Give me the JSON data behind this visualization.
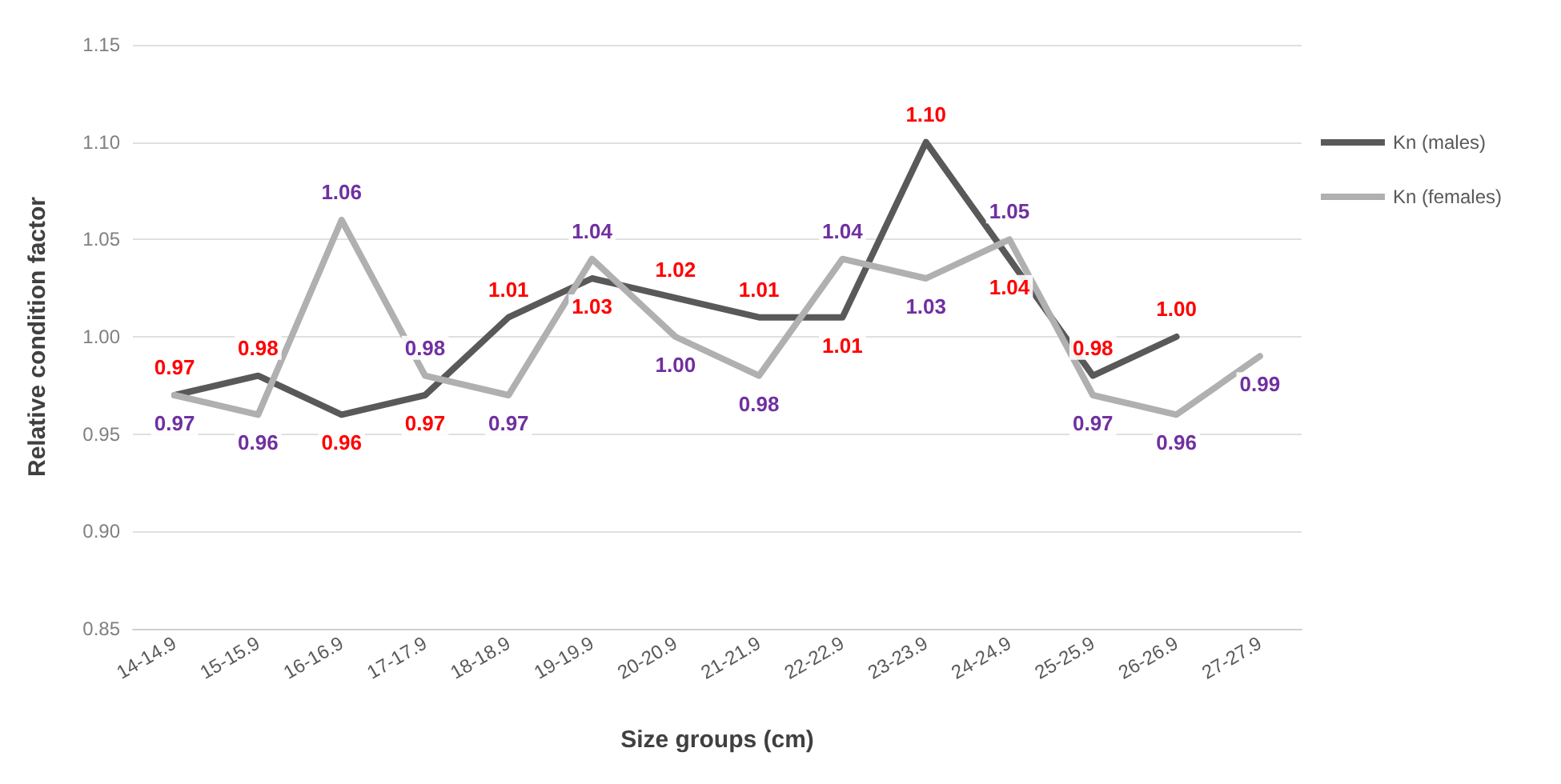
{
  "chart_data": {
    "type": "line",
    "xlabel": "Size groups (cm)",
    "ylabel": "Relative condition factor",
    "categories": [
      "14-14.9",
      "15-15.9",
      "16-16.9",
      "17-17.9",
      "18-18.9",
      "19-19.9",
      "20-20.9",
      "21-21.9",
      "22-22.9",
      "23-23.9",
      "24-24.9",
      "25-25.9",
      "26-26.9",
      "27-27.9"
    ],
    "series": [
      {
        "name": "Kn (males)",
        "color": "#595959",
        "values": [
          0.97,
          0.98,
          0.96,
          0.97,
          1.01,
          1.03,
          1.02,
          1.01,
          1.01,
          1.1,
          1.04,
          0.98,
          1.0,
          null
        ],
        "value_labels": [
          "0.97",
          "0.98",
          "0.96",
          "0.97",
          "1.01",
          "1.03",
          "1.02",
          "1.01",
          "1.01",
          "1.10",
          "1.04",
          "0.98",
          "1.00",
          null
        ]
      },
      {
        "name": "Kn (females)",
        "color": "#b0b0b0",
        "values": [
          0.97,
          0.96,
          1.06,
          0.98,
          0.97,
          1.04,
          1.0,
          0.98,
          1.04,
          1.03,
          1.05,
          0.97,
          0.96,
          0.99
        ],
        "value_labels": [
          "0.97",
          "0.96",
          "1.06",
          "0.98",
          "0.97",
          "1.04",
          "1.00",
          "0.98",
          "1.04",
          "1.03",
          "1.05",
          "0.97",
          "0.96",
          "0.99"
        ]
      }
    ],
    "ylim": [
      0.85,
      1.15
    ],
    "yticks": [
      {
        "value": 0.85,
        "label": "0.85"
      },
      {
        "value": 0.9,
        "label": "0.90"
      },
      {
        "value": 0.95,
        "label": "0.95"
      },
      {
        "value": 1,
        "label": "1.00"
      },
      {
        "value": 1.05,
        "label": "1.05"
      },
      {
        "value": 1.1,
        "label": "1.10"
      },
      {
        "value": 1.15,
        "label": "1.15"
      }
    ],
    "grid": "y",
    "legend": "top right",
    "marker": "none",
    "line_style": "solid"
  }
}
